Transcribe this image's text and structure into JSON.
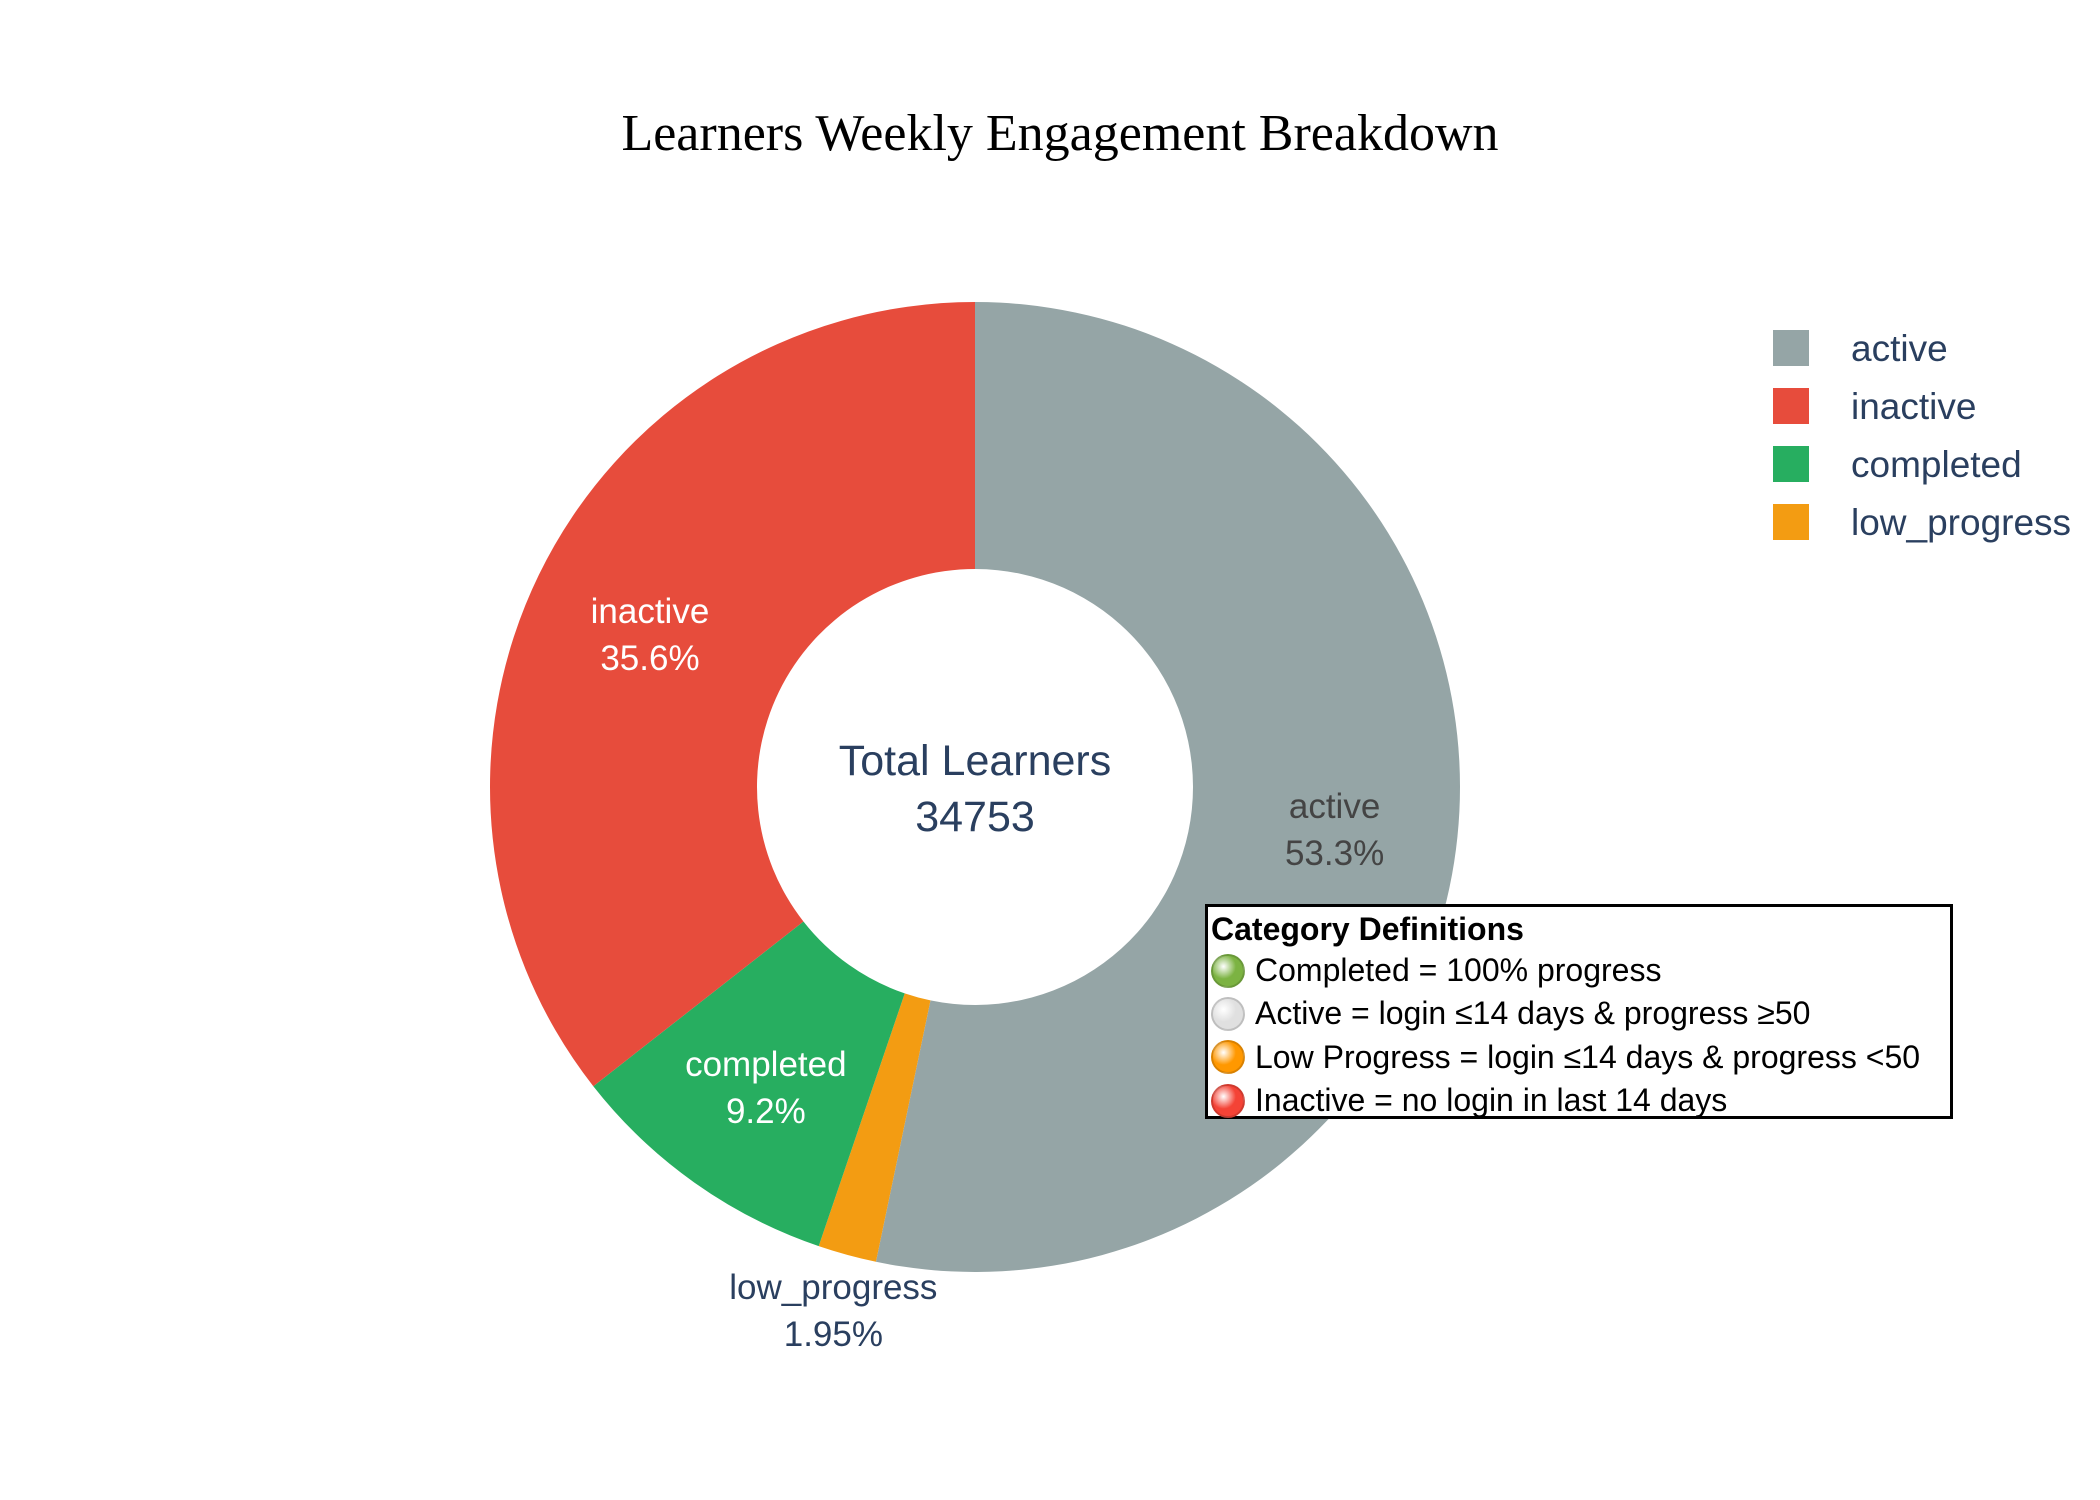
{
  "chart_data": {
    "type": "pie",
    "hole": true,
    "title": "Learners Weekly Engagement Breakdown",
    "center_annotation": {
      "line1": "Total Learners",
      "line2": "34753"
    },
    "slices": [
      {
        "label": "active",
        "percent_text": "53.3%",
        "value": 53.3,
        "color": "#95a5a6",
        "text_color": "#444444",
        "label_outside": false
      },
      {
        "label": "low_progress",
        "percent_text": "1.95%",
        "value": 1.95,
        "color": "#f39c12",
        "text_color": "#2a3f5f",
        "label_outside": true
      },
      {
        "label": "completed",
        "percent_text": "9.2%",
        "value": 9.2,
        "color": "#27ae60",
        "text_color": "#ffffff",
        "label_outside": false
      },
      {
        "label": "inactive",
        "percent_text": "35.6%",
        "value": 35.6,
        "color": "#e74c3c",
        "text_color": "#ffffff",
        "label_outside": false
      }
    ],
    "legend": {
      "placement": "top-right",
      "entries": [
        {
          "label": "active",
          "color": "#95a5a6"
        },
        {
          "label": "inactive",
          "color": "#e74c3c"
        },
        {
          "label": "completed",
          "color": "#27ae60"
        },
        {
          "label": "low_progress",
          "color": "#f39c12"
        }
      ]
    }
  },
  "definitions": {
    "title": "Category Definitions",
    "items": [
      {
        "icon": "green-circle-icon",
        "color": "#7cb342",
        "text": "Completed = 100% progress"
      },
      {
        "icon": "white-circle-icon",
        "color": "#e0e0e0",
        "text": "Active = login ≤14 days & progress ≥50"
      },
      {
        "icon": "orange-circle-icon",
        "color": "#ff9800",
        "text": "Low Progress = login ≤14 days & progress <50"
      },
      {
        "icon": "red-circle-icon",
        "color": "#f44336",
        "text": "Inactive = no login in last 14 days"
      }
    ]
  }
}
